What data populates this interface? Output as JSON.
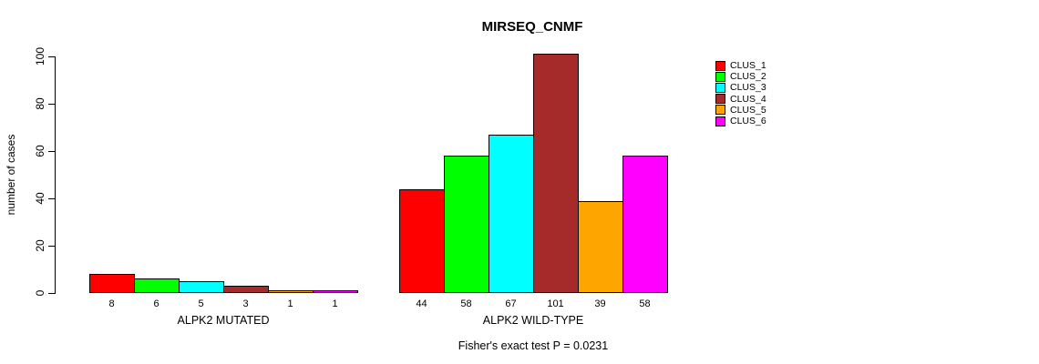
{
  "chart_data": {
    "type": "bar",
    "title": "MIRSEQ_CNMF",
    "ylabel": "number of cases",
    "xlabel": "",
    "ylim": [
      0,
      100
    ],
    "yticks": [
      0,
      20,
      40,
      60,
      80,
      100
    ],
    "grid": false,
    "legend_position": "top-right-outside",
    "categories": [
      "CLUS_1",
      "CLUS_2",
      "CLUS_3",
      "CLUS_4",
      "CLUS_5",
      "CLUS_6"
    ],
    "groups": [
      {
        "label": "ALPK2 MUTATED",
        "values": [
          8,
          6,
          5,
          3,
          1,
          1
        ],
        "value_labels": [
          "8",
          "6",
          "5",
          "3",
          "1",
          "1"
        ]
      },
      {
        "label": "ALPK2 WILD-TYPE",
        "values": [
          44,
          58,
          67,
          101,
          39,
          58
        ],
        "value_labels": [
          "44",
          "58",
          "67",
          "101",
          "39",
          "58"
        ]
      }
    ],
    "series_colors": [
      "#FF0000",
      "#00FF00",
      "#00FFFF",
      "#A52A2A",
      "#FFA500",
      "#FF00FF"
    ],
    "annotation": "Fisher's exact test P = 0.0231"
  },
  "legend": {
    "items": [
      {
        "label": "CLUS_1",
        "color": "#FF0000"
      },
      {
        "label": "CLUS_2",
        "color": "#00FF00"
      },
      {
        "label": "CLUS_3",
        "color": "#00FFFF"
      },
      {
        "label": "CLUS_4",
        "color": "#A52A2A"
      },
      {
        "label": "CLUS_5",
        "color": "#FFA500"
      },
      {
        "label": "CLUS_6",
        "color": "#FF00FF"
      }
    ]
  }
}
